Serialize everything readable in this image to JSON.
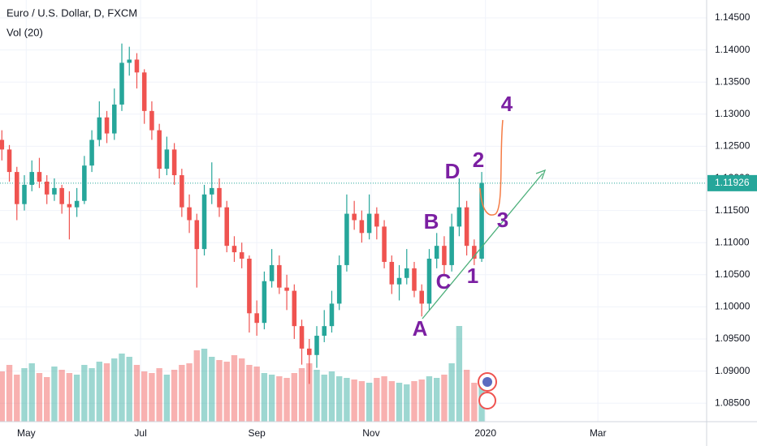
{
  "chart_data": {
    "type": "candlestick",
    "title": "Euro / U.S. Dollar, D, FXCM",
    "volume_label": "Vol (20)",
    "up_color": "#26a69a",
    "down_color": "#ef5350",
    "x": [
      108,
      112,
      116,
      120,
      124,
      128,
      132,
      136,
      140,
      144,
      148,
      152,
      156,
      160,
      164,
      168,
      172,
      176,
      180,
      184,
      188,
      192,
      196,
      200,
      204,
      208,
      212,
      216,
      220,
      224,
      228,
      232,
      236,
      240,
      244,
      248,
      252,
      256,
      260,
      264,
      268,
      272,
      276,
      280,
      284,
      288,
      292,
      296,
      300,
      304,
      308,
      312,
      316,
      320,
      324,
      328,
      332,
      336,
      340,
      344,
      348,
      352,
      356,
      360,
      364
    ],
    "open": [
      1.126,
      1.1245,
      1.121,
      1.116,
      1.119,
      1.121,
      1.1195,
      1.1175,
      1.1185,
      1.116,
      1.1155,
      1.1165,
      1.122,
      1.126,
      1.1295,
      1.127,
      1.1315,
      1.138,
      1.1385,
      1.1365,
      1.1305,
      1.1275,
      1.1215,
      1.1245,
      1.1205,
      1.1155,
      1.1135,
      1.109,
      1.1175,
      1.1185,
      1.1155,
      1.1095,
      1.1085,
      1.1075,
      1.099,
      1.0975,
      1.104,
      1.1065,
      1.103,
      1.1025,
      1.097,
      1.0935,
      1.0925,
      1.0955,
      1.097,
      1.1005,
      1.1065,
      1.1145,
      1.1135,
      1.1115,
      1.1145,
      1.1125,
      1.107,
      1.1035,
      1.1045,
      1.106,
      1.1025,
      1.1005,
      1.1075,
      1.1095,
      1.1065,
      1.1125,
      1.1155,
      1.1095,
      1.1075
    ],
    "high": [
      1.1275,
      1.1252,
      1.1218,
      1.1205,
      1.1228,
      1.1232,
      1.1205,
      1.12,
      1.119,
      1.118,
      1.1185,
      1.1235,
      1.1275,
      1.132,
      1.1305,
      1.134,
      1.141,
      1.1405,
      1.1395,
      1.137,
      1.132,
      1.1285,
      1.1265,
      1.1255,
      1.1215,
      1.1175,
      1.1145,
      1.119,
      1.1225,
      1.12,
      1.1165,
      1.111,
      1.11,
      1.108,
      1.101,
      1.1055,
      1.109,
      1.108,
      1.105,
      1.1035,
      1.098,
      1.095,
      1.097,
      1.0995,
      1.1025,
      1.108,
      1.1175,
      1.1165,
      1.115,
      1.1175,
      1.1155,
      1.1135,
      1.108,
      1.1065,
      1.109,
      1.107,
      1.1035,
      1.109,
      1.1115,
      1.111,
      1.1145,
      1.12,
      1.1165,
      1.1105,
      1.121
    ],
    "low": [
      1.1228,
      1.1195,
      1.1135,
      1.115,
      1.118,
      1.1185,
      1.116,
      1.1165,
      1.1145,
      1.1105,
      1.114,
      1.116,
      1.121,
      1.125,
      1.1255,
      1.126,
      1.1305,
      1.136,
      1.134,
      1.1285,
      1.126,
      1.12,
      1.1205,
      1.119,
      1.114,
      1.1115,
      1.103,
      1.108,
      1.116,
      1.114,
      1.1085,
      1.107,
      1.106,
      1.096,
      1.0955,
      1.0965,
      1.103,
      1.102,
      1.0995,
      1.095,
      1.091,
      1.088,
      1.0905,
      1.0945,
      1.096,
      1.0995,
      1.1055,
      1.112,
      1.11,
      1.1105,
      1.1105,
      1.106,
      1.102,
      1.101,
      1.1035,
      1.1015,
      1.0985,
      1.0995,
      1.106,
      1.105,
      1.1055,
      1.111,
      1.108,
      1.1065,
      1.107
    ],
    "close": [
      1.1245,
      1.121,
      1.116,
      1.119,
      1.121,
      1.1195,
      1.1175,
      1.1185,
      1.116,
      1.1155,
      1.1165,
      1.122,
      1.126,
      1.1295,
      1.127,
      1.1315,
      1.138,
      1.1385,
      1.1365,
      1.1305,
      1.1275,
      1.1215,
      1.1245,
      1.1205,
      1.1155,
      1.1135,
      1.109,
      1.1175,
      1.1185,
      1.1155,
      1.1095,
      1.1085,
      1.1075,
      1.099,
      1.0975,
      1.104,
      1.1065,
      1.103,
      1.1025,
      1.097,
      1.0935,
      1.0925,
      1.0955,
      1.097,
      1.1005,
      1.1065,
      1.1145,
      1.1135,
      1.1115,
      1.1145,
      1.1125,
      1.107,
      1.1035,
      1.1045,
      1.106,
      1.1025,
      1.1005,
      1.1075,
      1.1095,
      1.1065,
      1.1125,
      1.1155,
      1.1095,
      1.1075,
      1.1193
    ],
    "volume": [
      62,
      70,
      58,
      66,
      72,
      60,
      55,
      68,
      64,
      60,
      58,
      70,
      66,
      74,
      72,
      78,
      84,
      80,
      70,
      62,
      60,
      66,
      58,
      64,
      70,
      72,
      88,
      90,
      80,
      76,
      74,
      82,
      78,
      70,
      68,
      60,
      58,
      56,
      54,
      60,
      66,
      72,
      64,
      58,
      62,
      56,
      54,
      52,
      50,
      48,
      54,
      56,
      50,
      48,
      46,
      50,
      52,
      56,
      54,
      58,
      72,
      118,
      64,
      48,
      52
    ],
    "last_price": 1.11926,
    "xlim": [
      107,
      484
    ],
    "ylim": [
      1.08212,
      1.14778
    ],
    "xticks": [
      {
        "value": 121,
        "label": "May"
      },
      {
        "value": 182,
        "label": "Jul"
      },
      {
        "value": 244,
        "label": "Sep"
      },
      {
        "value": 305,
        "label": "Nov"
      },
      {
        "value": 366,
        "label": "2020"
      },
      {
        "value": 426,
        "label": "Mar"
      }
    ],
    "yticks": [
      {
        "value": 1.085,
        "label": "1.08500"
      },
      {
        "value": 1.09,
        "label": "1.09000"
      },
      {
        "value": 1.095,
        "label": "1.09500"
      },
      {
        "value": 1.1,
        "label": "1.10000"
      },
      {
        "value": 1.105,
        "label": "1.10500"
      },
      {
        "value": 1.11,
        "label": "1.11000"
      },
      {
        "value": 1.115,
        "label": "1.11500"
      },
      {
        "value": 1.12,
        "label": "1.12000"
      },
      {
        "value": 1.125,
        "label": "1.12500"
      },
      {
        "value": 1.13,
        "label": "1.13000"
      },
      {
        "value": 1.135,
        "label": "1.13500"
      },
      {
        "value": 1.14,
        "label": "1.14000"
      },
      {
        "value": 1.145,
        "label": "1.14500"
      }
    ],
    "annotations": [
      "A",
      "B",
      "C",
      "D",
      "1",
      "2",
      "3",
      "4"
    ]
  }
}
